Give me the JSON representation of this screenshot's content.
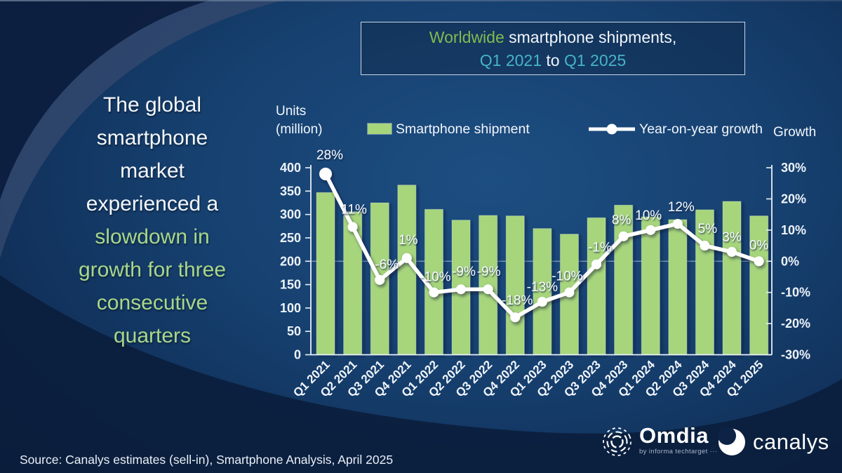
{
  "colors": {
    "accent_green": "#82ba50",
    "accent_cyan": "#46b4c8",
    "headline_green": "#a9d78a",
    "bar_green": "#a6d57c",
    "line_white": "#ffffff"
  },
  "title_box": {
    "highlight": "Worldwide",
    "rest": " smartphone shipments,",
    "range_start": "Q1 2021",
    "range_sep": " to ",
    "range_end": "Q1 2025"
  },
  "headline": {
    "white_lines": [
      "The global",
      "smartphone",
      "market",
      "experienced a"
    ],
    "green_lines": [
      "slowdown in",
      "growth for three",
      "consecutive",
      "quarters"
    ]
  },
  "chart_data": {
    "type": "bar+line combo",
    "categories": [
      "Q1 2021",
      "Q2 2021",
      "Q3 2021",
      "Q4 2021",
      "Q1 2022",
      "Q2 2022",
      "Q3 2022",
      "Q4 2022",
      "Q1 2023",
      "Q2 2023",
      "Q3 2023",
      "Q4 2023",
      "Q1 2024",
      "Q2 2024",
      "Q3 2024",
      "Q4 2024",
      "Q1 2025"
    ],
    "series": [
      {
        "name": "Smartphone shipment",
        "type": "bar",
        "unit": "million units",
        "color": "#a6d57c",
        "values": [
          347,
          306,
          325,
          363,
          311,
          288,
          298,
          297,
          270,
          258,
          293,
          320,
          295,
          289,
          310,
          328,
          297
        ]
      },
      {
        "name": "Year-on-year growth",
        "type": "line",
        "unit": "%",
        "color": "#ffffff",
        "values": [
          28,
          11,
          -6,
          1,
          -10,
          -9,
          -9,
          -18,
          -13,
          -10,
          -1,
          8,
          10,
          12,
          5,
          3,
          0
        ],
        "labels": [
          "28%",
          "11%",
          "-6%",
          "1%",
          "-10%",
          "-9%",
          "-9%",
          "-18%",
          "-13%",
          "-10%",
          "-1%",
          "8%",
          "10%",
          "12%",
          "5%",
          "3%",
          "0%"
        ]
      }
    ],
    "left_axis": {
      "title_line1": "Units",
      "title_line2": "(million)",
      "range": [
        0,
        400
      ],
      "ticks": [
        "400",
        "350",
        "300",
        "250",
        "200",
        "150",
        "100",
        "50",
        "0"
      ]
    },
    "right_axis": {
      "title": "Growth",
      "range": [
        -30,
        30
      ],
      "ticks": [
        "30%",
        "20%",
        "10%",
        "0%",
        "-10%",
        "-20%",
        "-30%"
      ]
    },
    "gridlines": "zero-growth line only",
    "legend_position": "top"
  },
  "footer": {
    "source": "Source: Canalys estimates (sell-in), Smartphone Analysis, April 2025"
  },
  "logos": {
    "omdia": {
      "name": "Omdia",
      "tagline": "by informa techtarget ···"
    },
    "canalys": {
      "name": "canalys"
    }
  }
}
